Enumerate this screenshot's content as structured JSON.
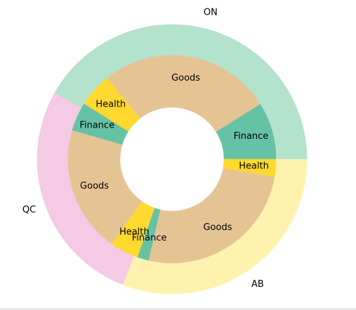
{
  "chart_data": {
    "type": "pie",
    "subtype": "nested-donut",
    "start_angle_deg": 0,
    "direction": "counterclockwise",
    "outer_ring": {
      "labels": [
        "ON",
        "QC",
        "AB"
      ],
      "values": [
        4.6,
        3.0,
        3.4
      ],
      "colors": [
        "#b3e2cd",
        "#f4cae4",
        "#fff2ae"
      ]
    },
    "inner_ring": {
      "labels": [
        "Finance",
        "Goods",
        "Health",
        "Finance",
        "Goods",
        "Health",
        "Finance",
        "Goods",
        "Health"
      ],
      "parents": [
        "ON",
        "ON",
        "ON",
        "QC",
        "QC",
        "QC",
        "AB",
        "AB",
        "AB"
      ],
      "values": [
        1.0,
        3.0,
        0.6,
        0.5,
        2.2,
        0.5,
        0.2,
        2.9,
        0.3
      ],
      "colors": [
        "#66c2a5",
        "#e5c494",
        "#ffd92f",
        "#66c2a5",
        "#e5c494",
        "#ffd92f",
        "#66c2a5",
        "#e5c494",
        "#ffd92f"
      ]
    },
    "title": "",
    "legend": "none"
  }
}
